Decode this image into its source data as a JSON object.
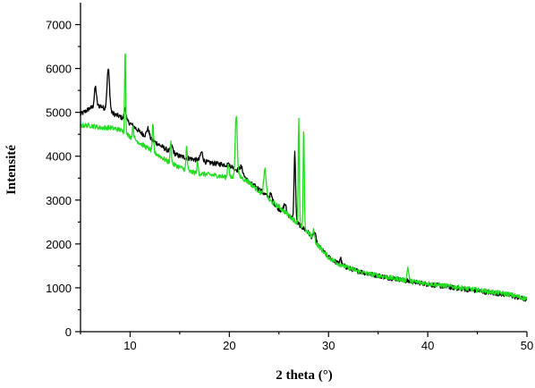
{
  "chart_data": {
    "type": "line",
    "title": "",
    "xlabel": "2 theta (°)",
    "ylabel": "Intensité",
    "xlim": [
      5,
      50
    ],
    "ylim": [
      0,
      7500
    ],
    "x_ticks": [
      10,
      20,
      30,
      40,
      50
    ],
    "y_ticks": [
      0,
      1000,
      2000,
      3000,
      4000,
      5000,
      6000,
      7000
    ],
    "grid": false,
    "legend": "none",
    "series": [
      {
        "color": "#000000",
        "base": [
          [
            5,
            4950
          ],
          [
            6,
            5100
          ],
          [
            7,
            5150
          ],
          [
            8,
            5000
          ],
          [
            9,
            4900
          ],
          [
            10,
            4750
          ],
          [
            11,
            4550
          ],
          [
            12,
            4400
          ],
          [
            13,
            4250
          ],
          [
            14,
            4100
          ],
          [
            15,
            4000
          ],
          [
            16,
            3950
          ],
          [
            17,
            3900
          ],
          [
            18,
            3850
          ],
          [
            19,
            3820
          ],
          [
            20,
            3800
          ],
          [
            21,
            3650
          ],
          [
            22,
            3400
          ],
          [
            23,
            3250
          ],
          [
            24,
            3050
          ],
          [
            25,
            2800
          ],
          [
            26,
            2650
          ],
          [
            27,
            2450
          ],
          [
            28,
            2250
          ],
          [
            29,
            1950
          ],
          [
            30,
            1700
          ],
          [
            31,
            1550
          ],
          [
            32,
            1450
          ],
          [
            33,
            1380
          ],
          [
            34,
            1320
          ],
          [
            35,
            1280
          ],
          [
            36,
            1230
          ],
          [
            37,
            1200
          ],
          [
            38,
            1150
          ],
          [
            39,
            1120
          ],
          [
            40,
            1080
          ],
          [
            42,
            1020
          ],
          [
            44,
            960
          ],
          [
            46,
            900
          ],
          [
            48,
            840
          ],
          [
            50,
            730
          ]
        ],
        "peaks": [
          [
            6.5,
            450,
            0.25
          ],
          [
            7.8,
            950,
            0.3
          ],
          [
            9.5,
            300,
            0.2
          ],
          [
            11.8,
            200,
            0.3
          ],
          [
            14.2,
            150,
            0.3
          ],
          [
            17.2,
            200,
            0.3
          ],
          [
            21.2,
            150,
            0.4
          ],
          [
            24.2,
            120,
            0.3
          ],
          [
            25.6,
            200,
            0.3
          ],
          [
            26.6,
            1550,
            0.18
          ],
          [
            28.6,
            180,
            0.3
          ],
          [
            31.2,
            150,
            0.2
          ]
        ]
      },
      {
        "color": "#22dd22",
        "base": [
          [
            5,
            4700
          ],
          [
            6,
            4700
          ],
          [
            7,
            4650
          ],
          [
            8,
            4650
          ],
          [
            9,
            4600
          ],
          [
            10,
            4450
          ],
          [
            11,
            4300
          ],
          [
            12,
            4150
          ],
          [
            13,
            4000
          ],
          [
            14,
            3850
          ],
          [
            15,
            3750
          ],
          [
            16,
            3650
          ],
          [
            17,
            3600
          ],
          [
            18,
            3580
          ],
          [
            19,
            3550
          ],
          [
            20,
            3500
          ],
          [
            21,
            3550
          ],
          [
            22,
            3400
          ],
          [
            23,
            3200
          ],
          [
            24,
            3000
          ],
          [
            25,
            2850
          ],
          [
            26,
            2650
          ],
          [
            27,
            2450
          ],
          [
            28,
            2250
          ],
          [
            29,
            1950
          ],
          [
            30,
            1700
          ],
          [
            31,
            1550
          ],
          [
            32,
            1450
          ],
          [
            33,
            1380
          ],
          [
            34,
            1320
          ],
          [
            35,
            1280
          ],
          [
            36,
            1240
          ],
          [
            37,
            1200
          ],
          [
            38,
            1160
          ],
          [
            39,
            1130
          ],
          [
            40,
            1100
          ],
          [
            42,
            1040
          ],
          [
            44,
            980
          ],
          [
            46,
            920
          ],
          [
            48,
            860
          ],
          [
            50,
            750
          ]
        ],
        "peaks": [
          [
            9.5,
            1950,
            0.12
          ],
          [
            10.3,
            300,
            0.15
          ],
          [
            12.3,
            600,
            0.15
          ],
          [
            14.1,
            500,
            0.15
          ],
          [
            15.7,
            550,
            0.15
          ],
          [
            16.8,
            250,
            0.15
          ],
          [
            19.9,
            350,
            0.2
          ],
          [
            20.7,
            1400,
            0.25
          ],
          [
            23.6,
            600,
            0.3
          ],
          [
            27.0,
            2450,
            0.13
          ],
          [
            27.5,
            2300,
            0.13
          ],
          [
            28.5,
            200,
            0.2
          ],
          [
            38.0,
            300,
            0.2
          ]
        ]
      }
    ]
  }
}
